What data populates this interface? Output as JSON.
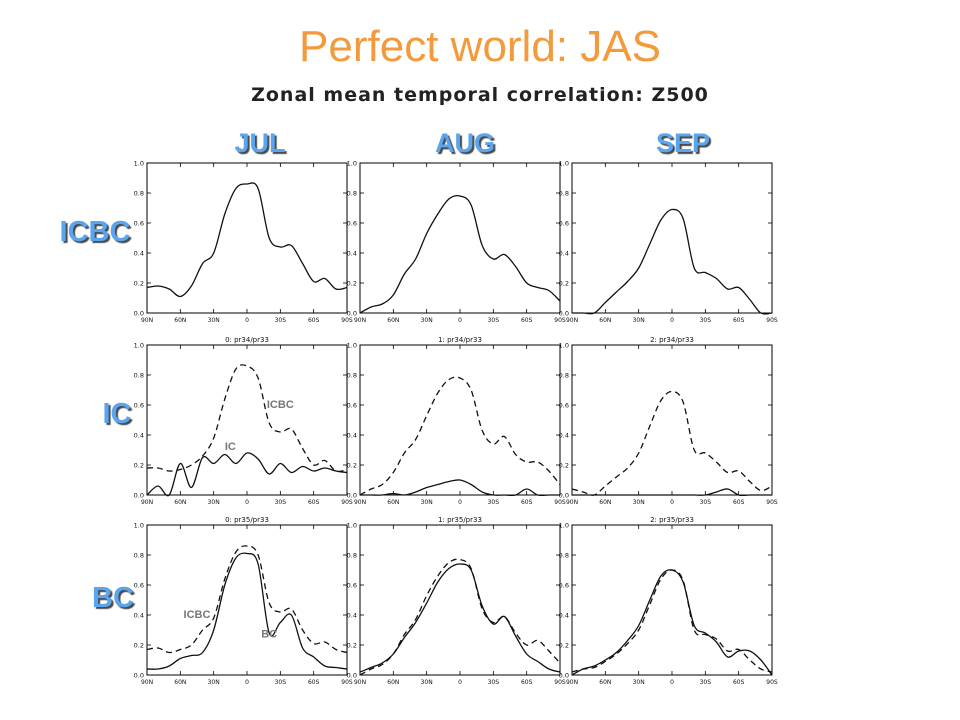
{
  "title": "Perfect world: JAS",
  "subtitle": "Zonal mean temporal correlation: Z500",
  "columns": [
    "JUL",
    "AUG",
    "SEP"
  ],
  "rows": [
    "ICBC",
    "IC",
    "BC"
  ],
  "colors": {
    "title": "#f39a3c",
    "labels": "#5aa6ee"
  },
  "chart_data": {
    "type": "line",
    "layout": "3x3 small multiples",
    "x_ticks": [
      "90N",
      "60N",
      "30N",
      "0",
      "30S",
      "60S",
      "90S"
    ],
    "y_ticks": [
      "0.0",
      "0.2",
      "0.4",
      "0.6",
      "0.8",
      "1.0"
    ],
    "xlim": [
      90,
      -90
    ],
    "ylim": [
      0,
      1
    ],
    "panels": [
      {
        "row": "ICBC",
        "col": "JUL",
        "caption": "",
        "series": [
          {
            "name": "ICBC",
            "style": "solid",
            "x": [
              90,
              80,
              70,
              60,
              50,
              40,
              30,
              20,
              10,
              0,
              -10,
              -20,
              -30,
              -40,
              -50,
              -60,
              -70,
              -80,
              -90
            ],
            "y": [
              0.17,
              0.18,
              0.16,
              0.11,
              0.18,
              0.33,
              0.4,
              0.66,
              0.83,
              0.86,
              0.83,
              0.5,
              0.44,
              0.45,
              0.33,
              0.21,
              0.23,
              0.16,
              0.17
            ]
          }
        ]
      },
      {
        "row": "ICBC",
        "col": "AUG",
        "caption": "",
        "series": [
          {
            "name": "ICBC",
            "style": "solid",
            "x": [
              90,
              80,
              70,
              60,
              50,
              40,
              30,
              20,
              10,
              0,
              -10,
              -20,
              -30,
              -40,
              -50,
              -60,
              -70,
              -80,
              -90
            ],
            "y": [
              0.0,
              0.04,
              0.06,
              0.12,
              0.26,
              0.36,
              0.53,
              0.66,
              0.76,
              0.78,
              0.72,
              0.45,
              0.36,
              0.39,
              0.31,
              0.2,
              0.17,
              0.15,
              0.08
            ]
          }
        ]
      },
      {
        "row": "ICBC",
        "col": "SEP",
        "caption": "",
        "series": [
          {
            "name": "ICBC",
            "style": "solid",
            "x": [
              90,
              80,
              70,
              60,
              50,
              40,
              30,
              20,
              10,
              0,
              -10,
              -20,
              -30,
              -40,
              -50,
              -60,
              -70,
              -80,
              -90
            ],
            "y": [
              0.0,
              0.0,
              0.0,
              0.07,
              0.14,
              0.21,
              0.3,
              0.46,
              0.62,
              0.69,
              0.63,
              0.3,
              0.27,
              0.23,
              0.16,
              0.17,
              0.09,
              0.0,
              0.0
            ]
          }
        ]
      },
      {
        "row": "IC",
        "col": "JUL",
        "caption": "0: pr34/pr33",
        "annotations": [
          {
            "text": "ICBC",
            "x": -30,
            "y": 0.58
          },
          {
            "text": "IC",
            "x": 15,
            "y": 0.3
          }
        ],
        "series": [
          {
            "name": "ICBC",
            "style": "dashed",
            "x": [
              90,
              80,
              70,
              60,
              50,
              40,
              30,
              20,
              10,
              0,
              -10,
              -20,
              -30,
              -40,
              -50,
              -60,
              -70,
              -80,
              -90
            ],
            "y": [
              0.18,
              0.18,
              0.16,
              0.17,
              0.2,
              0.26,
              0.38,
              0.64,
              0.84,
              0.86,
              0.78,
              0.48,
              0.42,
              0.44,
              0.31,
              0.2,
              0.23,
              0.16,
              0.17
            ]
          },
          {
            "name": "IC",
            "style": "solid",
            "x": [
              90,
              80,
              70,
              60,
              50,
              40,
              30,
              20,
              10,
              0,
              -10,
              -20,
              -30,
              -40,
              -50,
              -60,
              -70,
              -80,
              -90
            ],
            "y": [
              0.0,
              0.06,
              0.0,
              0.21,
              0.05,
              0.25,
              0.21,
              0.27,
              0.21,
              0.28,
              0.24,
              0.14,
              0.21,
              0.15,
              0.19,
              0.16,
              0.18,
              0.16,
              0.15
            ]
          }
        ]
      },
      {
        "row": "IC",
        "col": "AUG",
        "caption": "1: pr34/pr33",
        "series": [
          {
            "name": "ICBC",
            "style": "dashed",
            "x": [
              90,
              80,
              70,
              60,
              50,
              40,
              30,
              20,
              10,
              0,
              -10,
              -20,
              -30,
              -40,
              -50,
              -60,
              -70,
              -80,
              -90
            ],
            "y": [
              0.0,
              0.04,
              0.07,
              0.15,
              0.28,
              0.37,
              0.53,
              0.68,
              0.77,
              0.78,
              0.7,
              0.43,
              0.34,
              0.39,
              0.27,
              0.22,
              0.22,
              0.16,
              0.07
            ]
          },
          {
            "name": "IC",
            "style": "solid",
            "x": [
              90,
              80,
              70,
              60,
              50,
              40,
              30,
              20,
              10,
              0,
              -10,
              -20,
              -30,
              -40,
              -50,
              -60,
              -70,
              -80,
              -90
            ],
            "y": [
              0.0,
              0.0,
              0.0,
              0.01,
              0.0,
              0.02,
              0.05,
              0.07,
              0.09,
              0.1,
              0.07,
              0.02,
              0.0,
              0.0,
              0.0,
              0.04,
              0.0,
              0.0,
              0.0
            ]
          }
        ]
      },
      {
        "row": "IC",
        "col": "SEP",
        "caption": "2: pr34/pr33",
        "series": [
          {
            "name": "ICBC",
            "style": "dashed",
            "x": [
              90,
              80,
              70,
              60,
              50,
              40,
              30,
              20,
              10,
              0,
              -10,
              -20,
              -30,
              -40,
              -50,
              -60,
              -70,
              -80,
              -90
            ],
            "y": [
              0.04,
              0.02,
              0.0,
              0.06,
              0.12,
              0.18,
              0.28,
              0.46,
              0.63,
              0.69,
              0.62,
              0.3,
              0.28,
              0.22,
              0.15,
              0.16,
              0.09,
              0.03,
              0.06
            ]
          },
          {
            "name": "IC",
            "style": "solid",
            "x": [
              90,
              80,
              70,
              60,
              50,
              40,
              30,
              20,
              10,
              0,
              -10,
              -20,
              -30,
              -40,
              -50,
              -60,
              -70,
              -80,
              -90
            ],
            "y": [
              0.0,
              0.0,
              0.0,
              0.0,
              0.0,
              0.0,
              0.0,
              0.0,
              0.0,
              0.0,
              0.0,
              0.0,
              0.0,
              0.02,
              0.04,
              0.0,
              0.0,
              0.0,
              0.0
            ]
          }
        ]
      },
      {
        "row": "BC",
        "col": "JUL",
        "caption": "0: pr35/pr33",
        "annotations": [
          {
            "text": "ICBC",
            "x": 45,
            "y": 0.38
          },
          {
            "text": "BC",
            "x": -20,
            "y": 0.25
          }
        ],
        "series": [
          {
            "name": "ICBC",
            "style": "dashed",
            "x": [
              90,
              80,
              70,
              60,
              50,
              40,
              30,
              20,
              10,
              0,
              -10,
              -20,
              -30,
              -40,
              -50,
              -60,
              -70,
              -80,
              -90
            ],
            "y": [
              0.17,
              0.18,
              0.15,
              0.17,
              0.2,
              0.3,
              0.38,
              0.64,
              0.82,
              0.86,
              0.8,
              0.48,
              0.42,
              0.44,
              0.3,
              0.21,
              0.22,
              0.17,
              0.15
            ]
          },
          {
            "name": "BC",
            "style": "solid",
            "x": [
              90,
              80,
              70,
              60,
              50,
              40,
              30,
              20,
              10,
              0,
              -10,
              -20,
              -30,
              -40,
              -50,
              -60,
              -70,
              -80,
              -90
            ],
            "y": [
              0.04,
              0.04,
              0.06,
              0.11,
              0.13,
              0.15,
              0.3,
              0.6,
              0.78,
              0.81,
              0.74,
              0.28,
              0.35,
              0.4,
              0.18,
              0.12,
              0.06,
              0.05,
              0.04
            ]
          }
        ]
      },
      {
        "row": "BC",
        "col": "AUG",
        "caption": "1: pr35/pr33",
        "series": [
          {
            "name": "ICBC",
            "style": "dashed",
            "x": [
              90,
              80,
              70,
              60,
              50,
              40,
              30,
              20,
              10,
              0,
              -10,
              -20,
              -30,
              -40,
              -50,
              -60,
              -70,
              -80,
              -90
            ],
            "y": [
              0.0,
              0.04,
              0.07,
              0.14,
              0.27,
              0.37,
              0.53,
              0.66,
              0.75,
              0.77,
              0.71,
              0.44,
              0.35,
              0.39,
              0.28,
              0.2,
              0.23,
              0.16,
              0.08
            ]
          },
          {
            "name": "BC",
            "style": "solid",
            "x": [
              90,
              80,
              70,
              60,
              50,
              40,
              30,
              20,
              10,
              0,
              -10,
              -20,
              -30,
              -40,
              -50,
              -60,
              -70,
              -80,
              -90
            ],
            "y": [
              0.02,
              0.05,
              0.08,
              0.14,
              0.25,
              0.35,
              0.48,
              0.62,
              0.71,
              0.74,
              0.7,
              0.46,
              0.34,
              0.39,
              0.26,
              0.14,
              0.09,
              0.04,
              0.02
            ]
          }
        ]
      },
      {
        "row": "BC",
        "col": "SEP",
        "caption": "2: pr35/pr33",
        "series": [
          {
            "name": "ICBC",
            "style": "dashed",
            "x": [
              90,
              80,
              70,
              60,
              50,
              40,
              30,
              20,
              10,
              0,
              -10,
              -20,
              -30,
              -40,
              -50,
              -60,
              -70,
              -80,
              -90
            ],
            "y": [
              0.02,
              0.04,
              0.05,
              0.09,
              0.14,
              0.21,
              0.3,
              0.47,
              0.64,
              0.7,
              0.63,
              0.3,
              0.27,
              0.24,
              0.16,
              0.17,
              0.1,
              0.04,
              0.02
            ]
          },
          {
            "name": "BC",
            "style": "solid",
            "x": [
              90,
              80,
              70,
              60,
              50,
              40,
              30,
              20,
              10,
              0,
              -10,
              -20,
              -30,
              -40,
              -50,
              -60,
              -70,
              -80,
              -90
            ],
            "y": [
              0.0,
              0.04,
              0.06,
              0.1,
              0.15,
              0.23,
              0.33,
              0.5,
              0.66,
              0.7,
              0.62,
              0.33,
              0.28,
              0.22,
              0.12,
              0.16,
              0.16,
              0.1,
              0.0
            ]
          }
        ]
      }
    ]
  }
}
